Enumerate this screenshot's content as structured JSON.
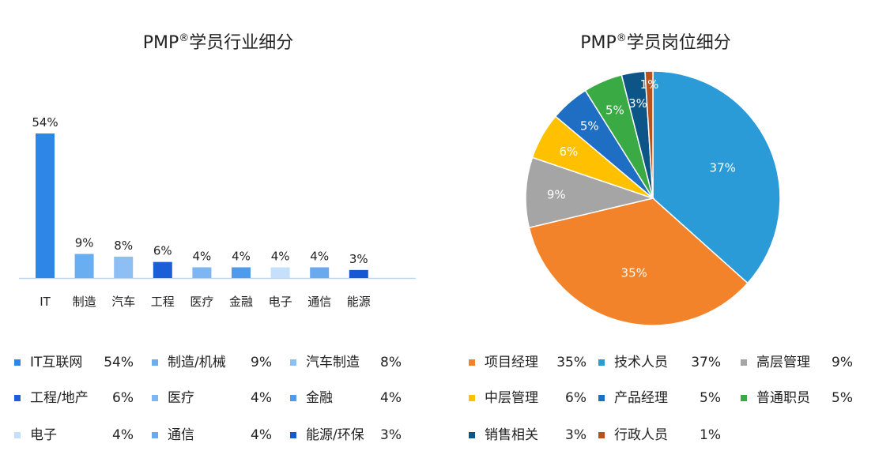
{
  "charts": {
    "left_title": "PMP",
    "left_title_mark": "®",
    "left_title_rest": "学员行业细分",
    "right_title": "PMP",
    "right_title_mark": "®",
    "right_title_rest": "学员岗位细分"
  },
  "chart_data": [
    {
      "type": "bar",
      "title": "PMP®学员行业细分",
      "categories": [
        "IT",
        "制造",
        "汽车",
        "工程",
        "医疗",
        "金融",
        "电子",
        "通信",
        "能源"
      ],
      "values": [
        54,
        9,
        8,
        6,
        4,
        4,
        4,
        4,
        3
      ],
      "value_labels": [
        "54%",
        "9%",
        "8%",
        "6%",
        "4%",
        "4%",
        "4%",
        "4%",
        "3%"
      ],
      "colors": [
        "#2e86e6",
        "#6aaef2",
        "#8dbff4",
        "#1a5fd8",
        "#7db6f2",
        "#4f9aea",
        "#c6dffa",
        "#6aa9ee",
        "#1657d3"
      ],
      "grid": false,
      "legend_position": "bottom",
      "legend": [
        {
          "label": "IT互联网",
          "value": "54%",
          "color": "#2e86e6"
        },
        {
          "label": "制造/机械",
          "value": "9%",
          "color": "#6aaef2"
        },
        {
          "label": "汽车制造",
          "value": "8%",
          "color": "#8dbff4"
        },
        {
          "label": "工程/地产",
          "value": "6%",
          "color": "#1a5fd8"
        },
        {
          "label": "医疗",
          "value": "4%",
          "color": "#7db6f2"
        },
        {
          "label": "金融",
          "value": "4%",
          "color": "#4f9aea"
        },
        {
          "label": "电子",
          "value": "4%",
          "color": "#c6dffa"
        },
        {
          "label": "通信",
          "value": "4%",
          "color": "#6aa9ee"
        },
        {
          "label": "能源/环保",
          "value": "3%",
          "color": "#1657d3"
        }
      ]
    },
    {
      "type": "pie",
      "title": "PMP®学员岗位细分",
      "slices": [
        {
          "label": "技术人员",
          "value": 37,
          "text": "37%",
          "color": "#2b9bd8"
        },
        {
          "label": "项目经理",
          "value": 35,
          "text": "35%",
          "color": "#f2832b"
        },
        {
          "label": "高层管理",
          "value": 9,
          "text": "9%",
          "color": "#a5a5a5"
        },
        {
          "label": "中层管理",
          "value": 6,
          "text": "6%",
          "color": "#ffc000"
        },
        {
          "label": "产品经理",
          "value": 5,
          "text": "5%",
          "color": "#1e6fc4"
        },
        {
          "label": "普通职员",
          "value": 5,
          "text": "5%",
          "color": "#3aaa44"
        },
        {
          "label": "销售相关",
          "value": 3,
          "text": "3%",
          "color": "#0d5487"
        },
        {
          "label": "行政人员",
          "value": 1,
          "text": "1%",
          "color": "#b5521e"
        }
      ],
      "legend_position": "bottom",
      "legend": [
        {
          "label": "项目经理",
          "value": "35%",
          "color": "#f2832b"
        },
        {
          "label": "技术人员",
          "value": "37%",
          "color": "#2b9bd8"
        },
        {
          "label": "高层管理",
          "value": "9%",
          "color": "#a5a5a5"
        },
        {
          "label": "中层管理",
          "value": "6%",
          "color": "#ffc000"
        },
        {
          "label": "产品经理",
          "value": "5%",
          "color": "#1e6fc4"
        },
        {
          "label": "普通职员",
          "value": "5%",
          "color": "#3aaa44"
        },
        {
          "label": "销售相关",
          "value": "3%",
          "color": "#0d5487"
        },
        {
          "label": "行政人员",
          "value": "1%",
          "color": "#b5521e"
        }
      ]
    }
  ]
}
